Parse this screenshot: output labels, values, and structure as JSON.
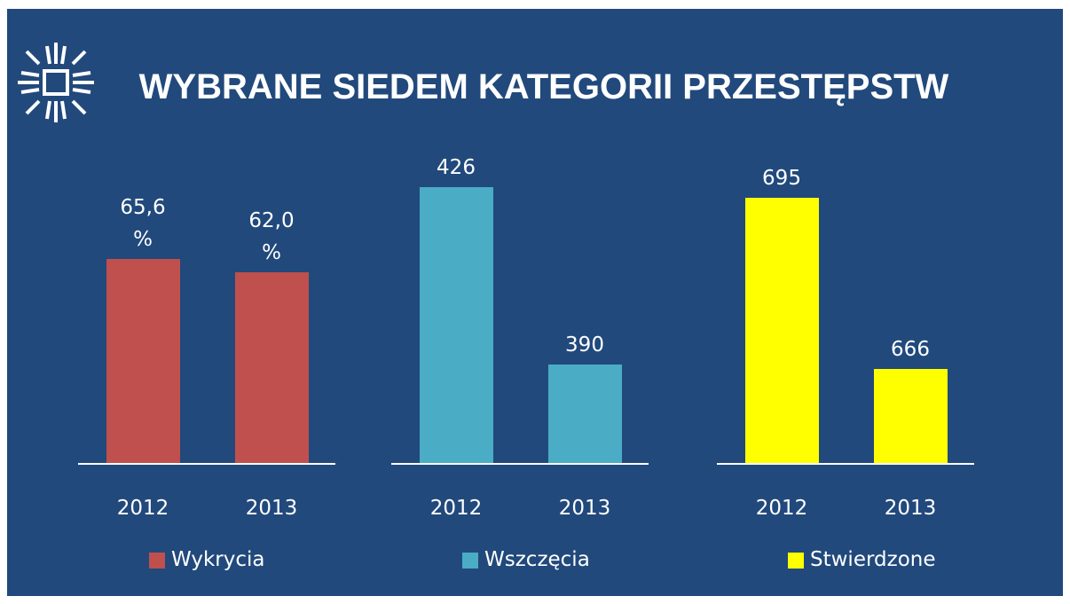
{
  "title": "WYBRANE SIEDEM KATEGORII PRZESTĘPSTW",
  "chart_data": [
    {
      "type": "bar",
      "categories": [
        "2012",
        "2013"
      ],
      "series": [
        {
          "name": "Wykrycia",
          "color": "#c0504d",
          "values": [
            65.6,
            62.0
          ]
        }
      ],
      "value_labels": [
        "65,6 %",
        "62,0 %"
      ],
      "ylim": [
        10,
        100
      ]
    },
    {
      "type": "bar",
      "categories": [
        "2012",
        "2013"
      ],
      "series": [
        {
          "name": "Wszczęcia",
          "color": "#4bacc6",
          "values": [
            426,
            390
          ]
        }
      ],
      "ylim": [
        370,
        437
      ]
    },
    {
      "type": "bar",
      "categories": [
        "2012",
        "2013"
      ],
      "series": [
        {
          "name": "Stwierdzone",
          "color": "#ffff00",
          "values": [
            695,
            666
          ]
        }
      ],
      "ylim": [
        650,
        706
      ]
    }
  ]
}
